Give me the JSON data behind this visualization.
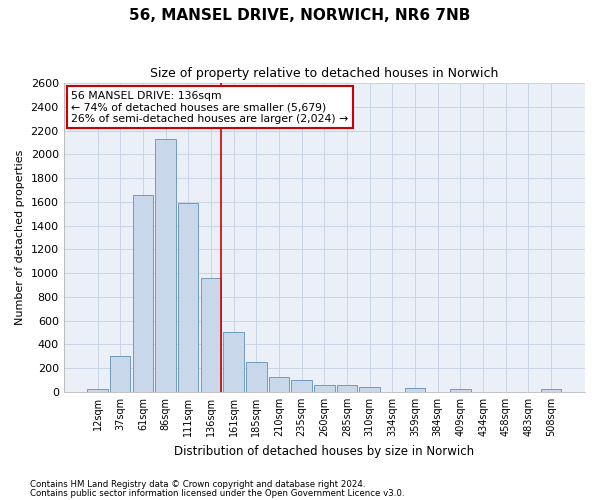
{
  "title_line1": "56, MANSEL DRIVE, NORWICH, NR6 7NB",
  "title_line2": "Size of property relative to detached houses in Norwich",
  "xlabel": "Distribution of detached houses by size in Norwich",
  "ylabel": "Number of detached properties",
  "categories": [
    "12sqm",
    "37sqm",
    "61sqm",
    "86sqm",
    "111sqm",
    "136sqm",
    "161sqm",
    "185sqm",
    "210sqm",
    "235sqm",
    "260sqm",
    "285sqm",
    "310sqm",
    "334sqm",
    "359sqm",
    "384sqm",
    "409sqm",
    "434sqm",
    "458sqm",
    "483sqm",
    "508sqm"
  ],
  "values": [
    25,
    300,
    1660,
    2130,
    1590,
    960,
    505,
    250,
    125,
    100,
    55,
    55,
    40,
    0,
    35,
    0,
    25,
    0,
    0,
    0,
    25
  ],
  "bar_color": "#c8d8ea",
  "bar_edge_color": "#6090b8",
  "highlight_index": 5,
  "highlight_line_color": "#cc0000",
  "ylim": [
    0,
    2600
  ],
  "yticks": [
    0,
    200,
    400,
    600,
    800,
    1000,
    1200,
    1400,
    1600,
    1800,
    2000,
    2200,
    2400,
    2600
  ],
  "annotation_title": "56 MANSEL DRIVE: 136sqm",
  "annotation_line1": "← 74% of detached houses are smaller (5,679)",
  "annotation_line2": "26% of semi-detached houses are larger (2,024) →",
  "annotation_box_color": "#ffffff",
  "annotation_box_edge": "#cc0000",
  "footnote1": "Contains HM Land Registry data © Crown copyright and database right 2024.",
  "footnote2": "Contains public sector information licensed under the Open Government Licence v3.0.",
  "grid_color": "#c8d4e4",
  "bg_color": "#eaeff8"
}
